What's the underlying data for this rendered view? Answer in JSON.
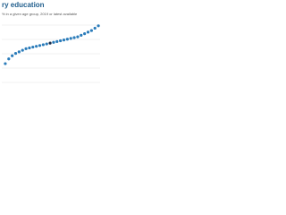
{
  "chart_data": {
    "type": "dot",
    "title": "ry education",
    "subtitle": "% in a given age group, 2019 or latest available",
    "categories": [
      null,
      null,
      null,
      null,
      null,
      null,
      null,
      null,
      null,
      null,
      null,
      null,
      null,
      null,
      null,
      null,
      null,
      null,
      null,
      null,
      null,
      null,
      null,
      null,
      null,
      null,
      null,
      null
    ],
    "values": [
      42,
      48,
      52,
      55,
      57,
      59,
      61,
      62,
      63,
      64,
      65,
      66,
      67,
      68,
      69,
      70,
      71,
      72,
      73,
      74,
      75,
      76,
      78,
      80,
      82,
      84,
      87,
      90
    ],
    "colors": [
      "#2b7cba",
      "#2b7cba",
      "#2b7cba",
      "#2b7cba",
      "#2b7cba",
      "#2b7cba",
      "#2b7cba",
      "#2b7cba",
      "#2b7cba",
      "#2b7cba",
      "#2b7cba",
      "#2b7cba",
      "#2b7cba",
      "#1c2e4a",
      "#2b7cba",
      "#2b7cba",
      "#2b7cba",
      "#2b7cba",
      "#2b7cba",
      "#2b7cba",
      "#2b7cba",
      "#2b7cba",
      "#2b7cba",
      "#2b7cba",
      "#2b7cba",
      "#2b7cba",
      "#2b7cba",
      "#2b7cba"
    ],
    "ylim": [
      0,
      100
    ]
  }
}
